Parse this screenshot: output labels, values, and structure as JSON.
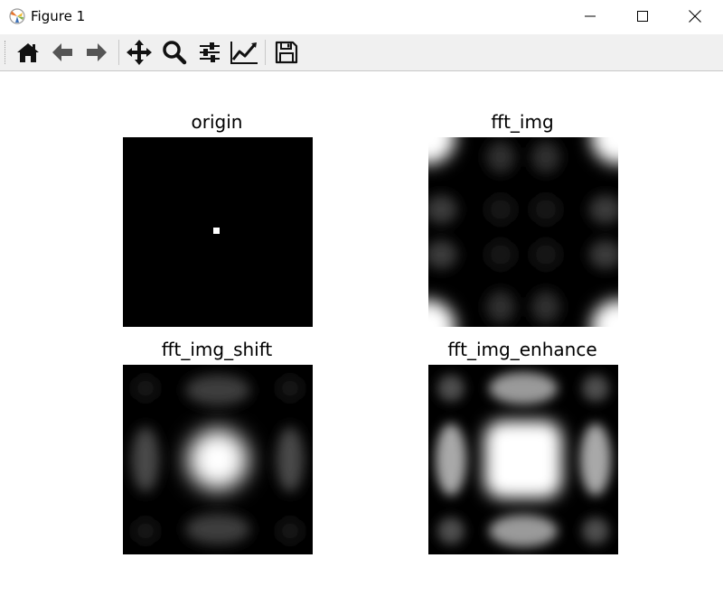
{
  "window": {
    "title": "Figure 1",
    "app_icon": "matplotlib-icon",
    "controls": [
      "minimize-icon",
      "maximize-icon",
      "close-icon"
    ]
  },
  "toolbar": {
    "buttons": [
      "home-icon",
      "back-arrow-icon",
      "forward-arrow-icon",
      "pan-icon",
      "zoom-icon",
      "configure-subplots-icon",
      "edit-axes-icon",
      "save-icon"
    ]
  },
  "figure": {
    "subplots": [
      {
        "title": "origin",
        "content": "black image with single white dot at center"
      },
      {
        "title": "fft_img",
        "content": "grayscale magnitude spectrum, bright corners"
      },
      {
        "title": "fft_img_shift",
        "content": "grayscale magnitude spectrum, bright center"
      },
      {
        "title": "fft_img_enhance",
        "content": "enhanced grayscale spectrum, bright center"
      }
    ]
  }
}
